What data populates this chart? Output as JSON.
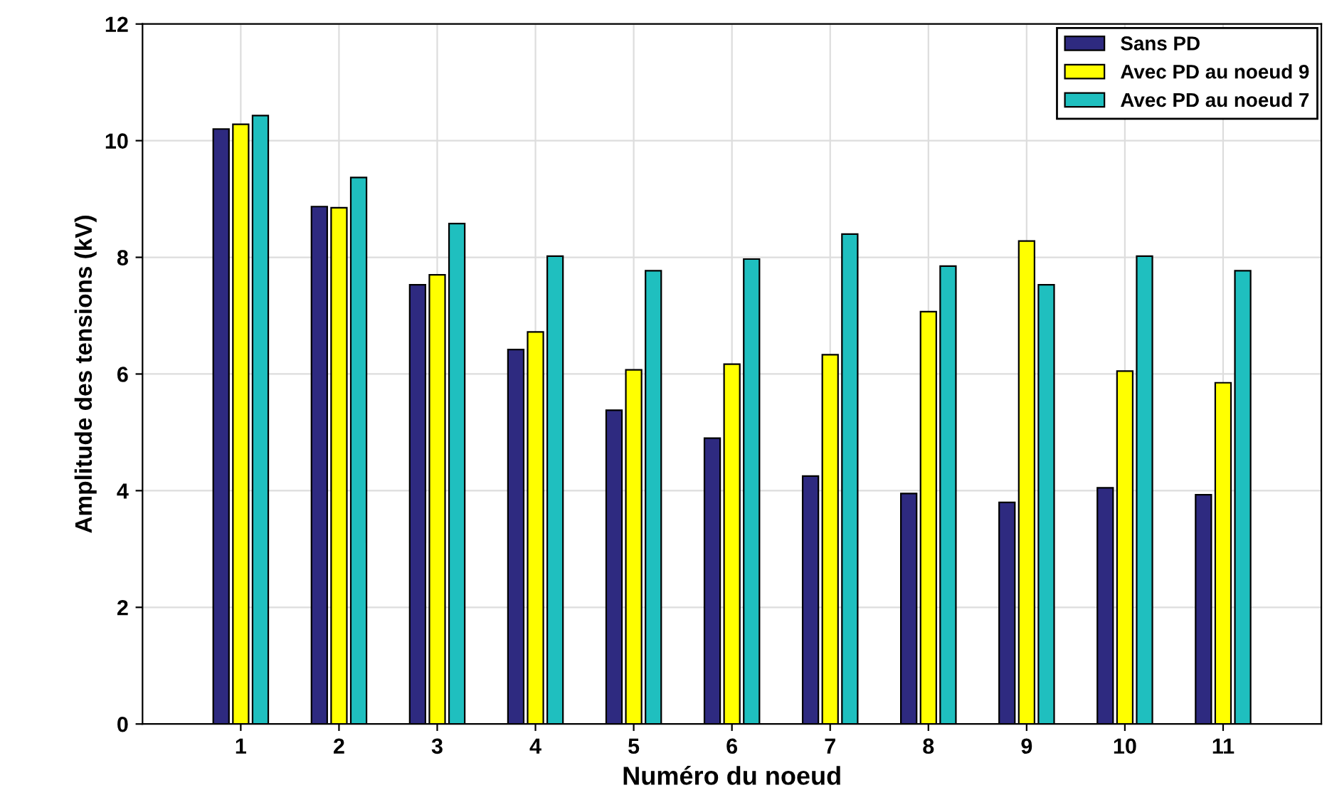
{
  "chart_data": {
    "type": "bar",
    "xlabel": "Numéro du noeud",
    "ylabel": "Amplitude des tensions (kV)",
    "categories": [
      "1",
      "2",
      "3",
      "4",
      "5",
      "6",
      "7",
      "8",
      "9",
      "10",
      "11"
    ],
    "series": [
      {
        "name": "Sans PD",
        "color": "#2e2a80",
        "values": [
          10.2,
          8.87,
          7.53,
          6.42,
          5.38,
          4.9,
          4.25,
          3.95,
          3.8,
          4.05,
          3.93
        ]
      },
      {
        "name": "Avec PD au noeud 9",
        "color": "#ffff00",
        "values": [
          10.28,
          8.85,
          7.7,
          6.72,
          6.07,
          6.17,
          6.33,
          7.07,
          8.28,
          6.05,
          5.85
        ]
      },
      {
        "name": "Avec PD au noeud 7",
        "color": "#1fbfbf",
        "values": [
          10.43,
          9.37,
          8.58,
          8.02,
          7.77,
          7.97,
          8.4,
          7.85,
          7.53,
          8.02,
          7.77
        ]
      }
    ],
    "ylim": [
      0,
      12
    ],
    "yticks": [
      0,
      2,
      4,
      6,
      8,
      10,
      12
    ],
    "grid": true,
    "legend": "top right"
  }
}
